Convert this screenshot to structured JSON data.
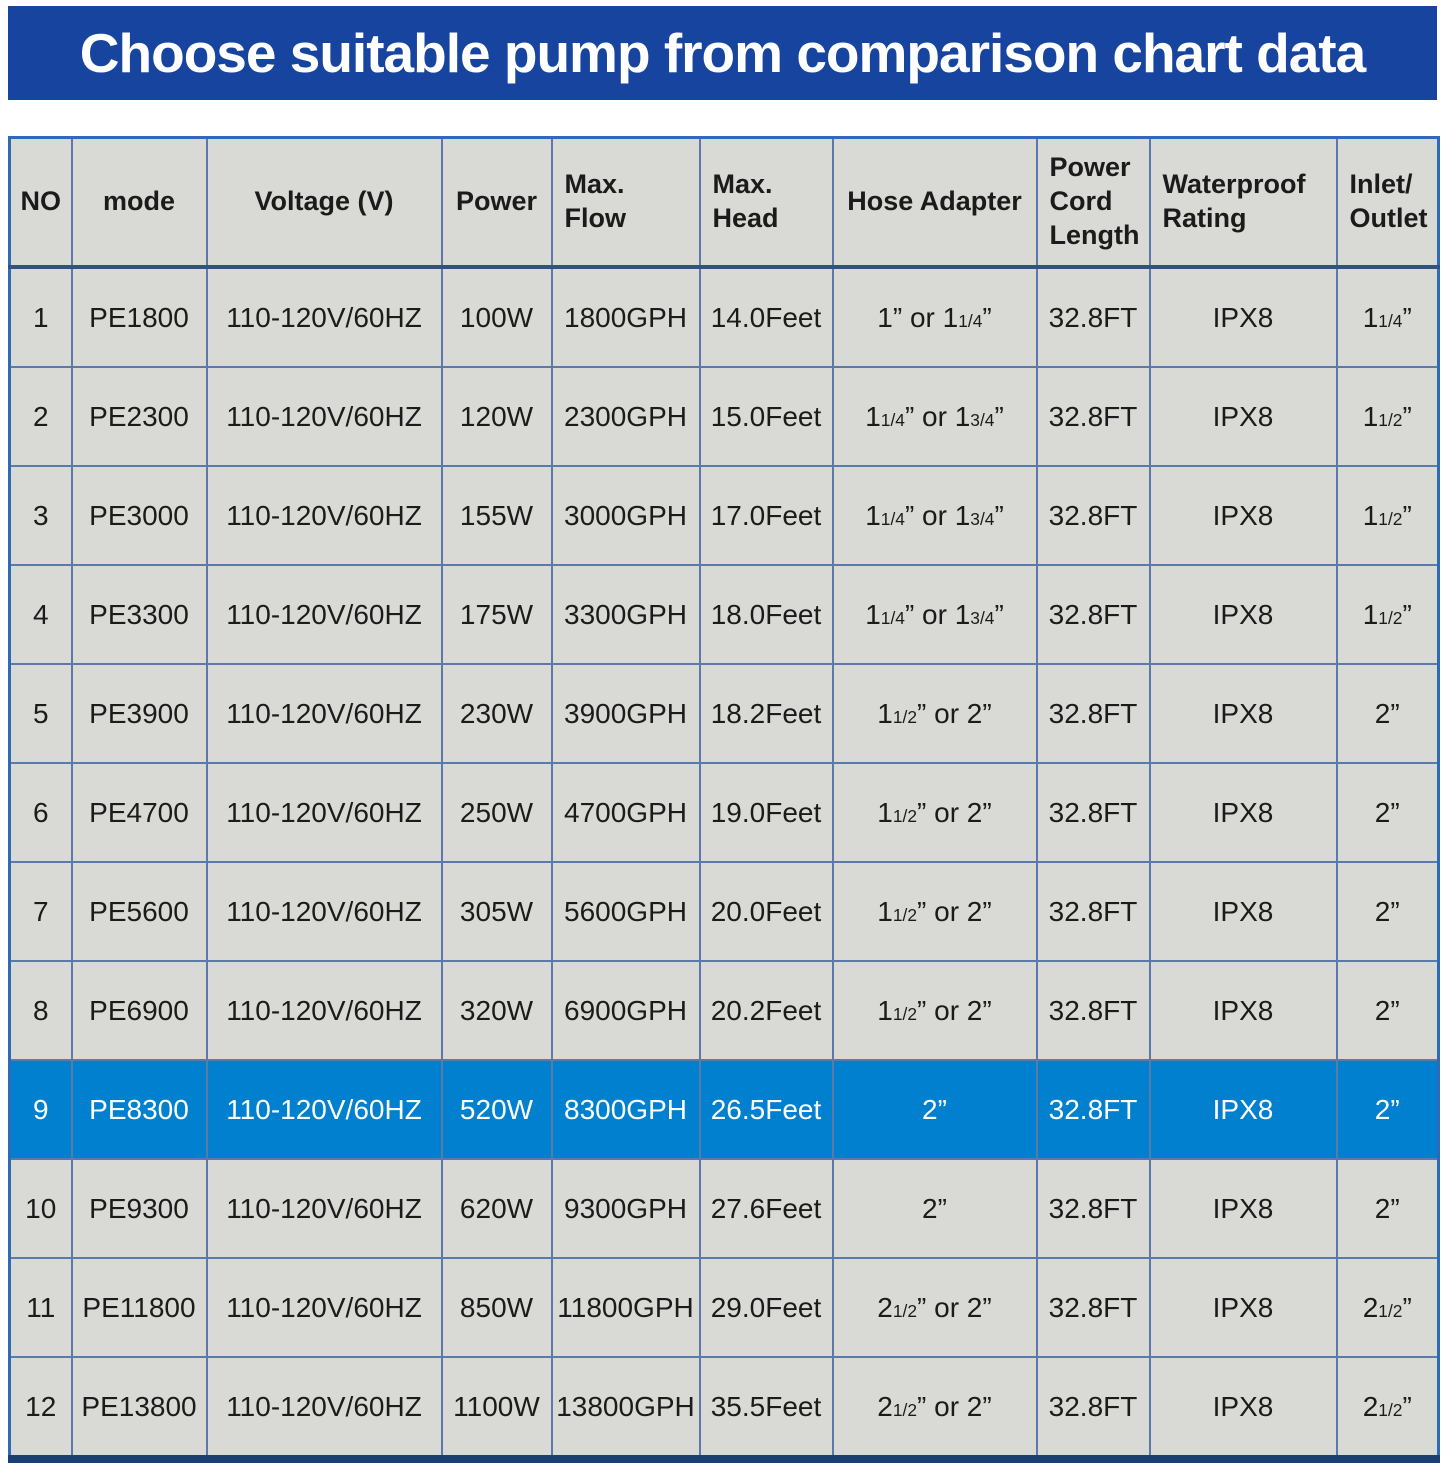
{
  "banner": {
    "title": "Choose suitable pump from comparison chart data"
  },
  "colors": {
    "banner_bg": "#17449e",
    "banner_text": "#ffffff",
    "cell_bg": "#d9dad5",
    "grid_line": "#5b7aa9",
    "outer_border": "#2e6ab5",
    "bottom_border": "#1c3e70",
    "highlight_row_bg": "#0080ce",
    "highlight_row_text": "#ffffff",
    "body_text": "#1b1b1b"
  },
  "chart_data": {
    "type": "table",
    "title": "Choose suitable pump from comparison chart data",
    "columns": [
      "NO",
      "mode",
      "Voltage (V)",
      "Power",
      "Max.\nFlow",
      "Max.\nHead",
      "Hose Adapter",
      "Power\nCord\nLength",
      "Waterproof\nRating",
      "Inlet/\nOutlet"
    ],
    "column_keys": [
      "no",
      "mode",
      "voltage",
      "power",
      "max-flow",
      "max-head",
      "hose-adapter",
      "power-cord-length",
      "waterproof-rating",
      "inlet-outlet"
    ],
    "highlighted_row_no": "9",
    "rows": [
      [
        "1",
        "PE1800",
        "110-120V/60HZ",
        "100W",
        "1800GPH",
        "14.0Feet",
        "1” or 11/4”",
        "32.8FT",
        "IPX8",
        "11/4”"
      ],
      [
        "2",
        "PE2300",
        "110-120V/60HZ",
        "120W",
        "2300GPH",
        "15.0Feet",
        "11/4” or 13/4”",
        "32.8FT",
        "IPX8",
        "11/2”"
      ],
      [
        "3",
        "PE3000",
        "110-120V/60HZ",
        "155W",
        "3000GPH",
        "17.0Feet",
        "11/4” or 13/4”",
        "32.8FT",
        "IPX8",
        "11/2”"
      ],
      [
        "4",
        "PE3300",
        "110-120V/60HZ",
        "175W",
        "3300GPH",
        "18.0Feet",
        "11/4” or 13/4”",
        "32.8FT",
        "IPX8",
        "11/2”"
      ],
      [
        "5",
        "PE3900",
        "110-120V/60HZ",
        "230W",
        "3900GPH",
        "18.2Feet",
        "11/2” or 2”",
        "32.8FT",
        "IPX8",
        "2”"
      ],
      [
        "6",
        "PE4700",
        "110-120V/60HZ",
        "250W",
        "4700GPH",
        "19.0Feet",
        "11/2” or 2”",
        "32.8FT",
        "IPX8",
        "2”"
      ],
      [
        "7",
        "PE5600",
        "110-120V/60HZ",
        "305W",
        "5600GPH",
        "20.0Feet",
        "11/2” or 2”",
        "32.8FT",
        "IPX8",
        "2”"
      ],
      [
        "8",
        "PE6900",
        "110-120V/60HZ",
        "320W",
        "6900GPH",
        "20.2Feet",
        "11/2” or 2”",
        "32.8FT",
        "IPX8",
        "2”"
      ],
      [
        "9",
        "PE8300",
        "110-120V/60HZ",
        "520W",
        "8300GPH",
        "26.5Feet",
        "2”",
        "32.8FT",
        "IPX8",
        "2”"
      ],
      [
        "10",
        "PE9300",
        "110-120V/60HZ",
        "620W",
        "9300GPH",
        "27.6Feet",
        "2”",
        "32.8FT",
        "IPX8",
        "2”"
      ],
      [
        "11",
        "PE11800",
        "110-120V/60HZ",
        "850W",
        "11800GPH",
        "29.0Feet",
        "21/2” or 2”",
        "32.8FT",
        "IPX8",
        "21/2”"
      ],
      [
        "12",
        "PE13800",
        "110-120V/60HZ",
        "1100W",
        "13800GPH",
        "35.5Feet",
        "21/2” or 2”",
        "32.8FT",
        "IPX8",
        "21/2”"
      ]
    ]
  }
}
